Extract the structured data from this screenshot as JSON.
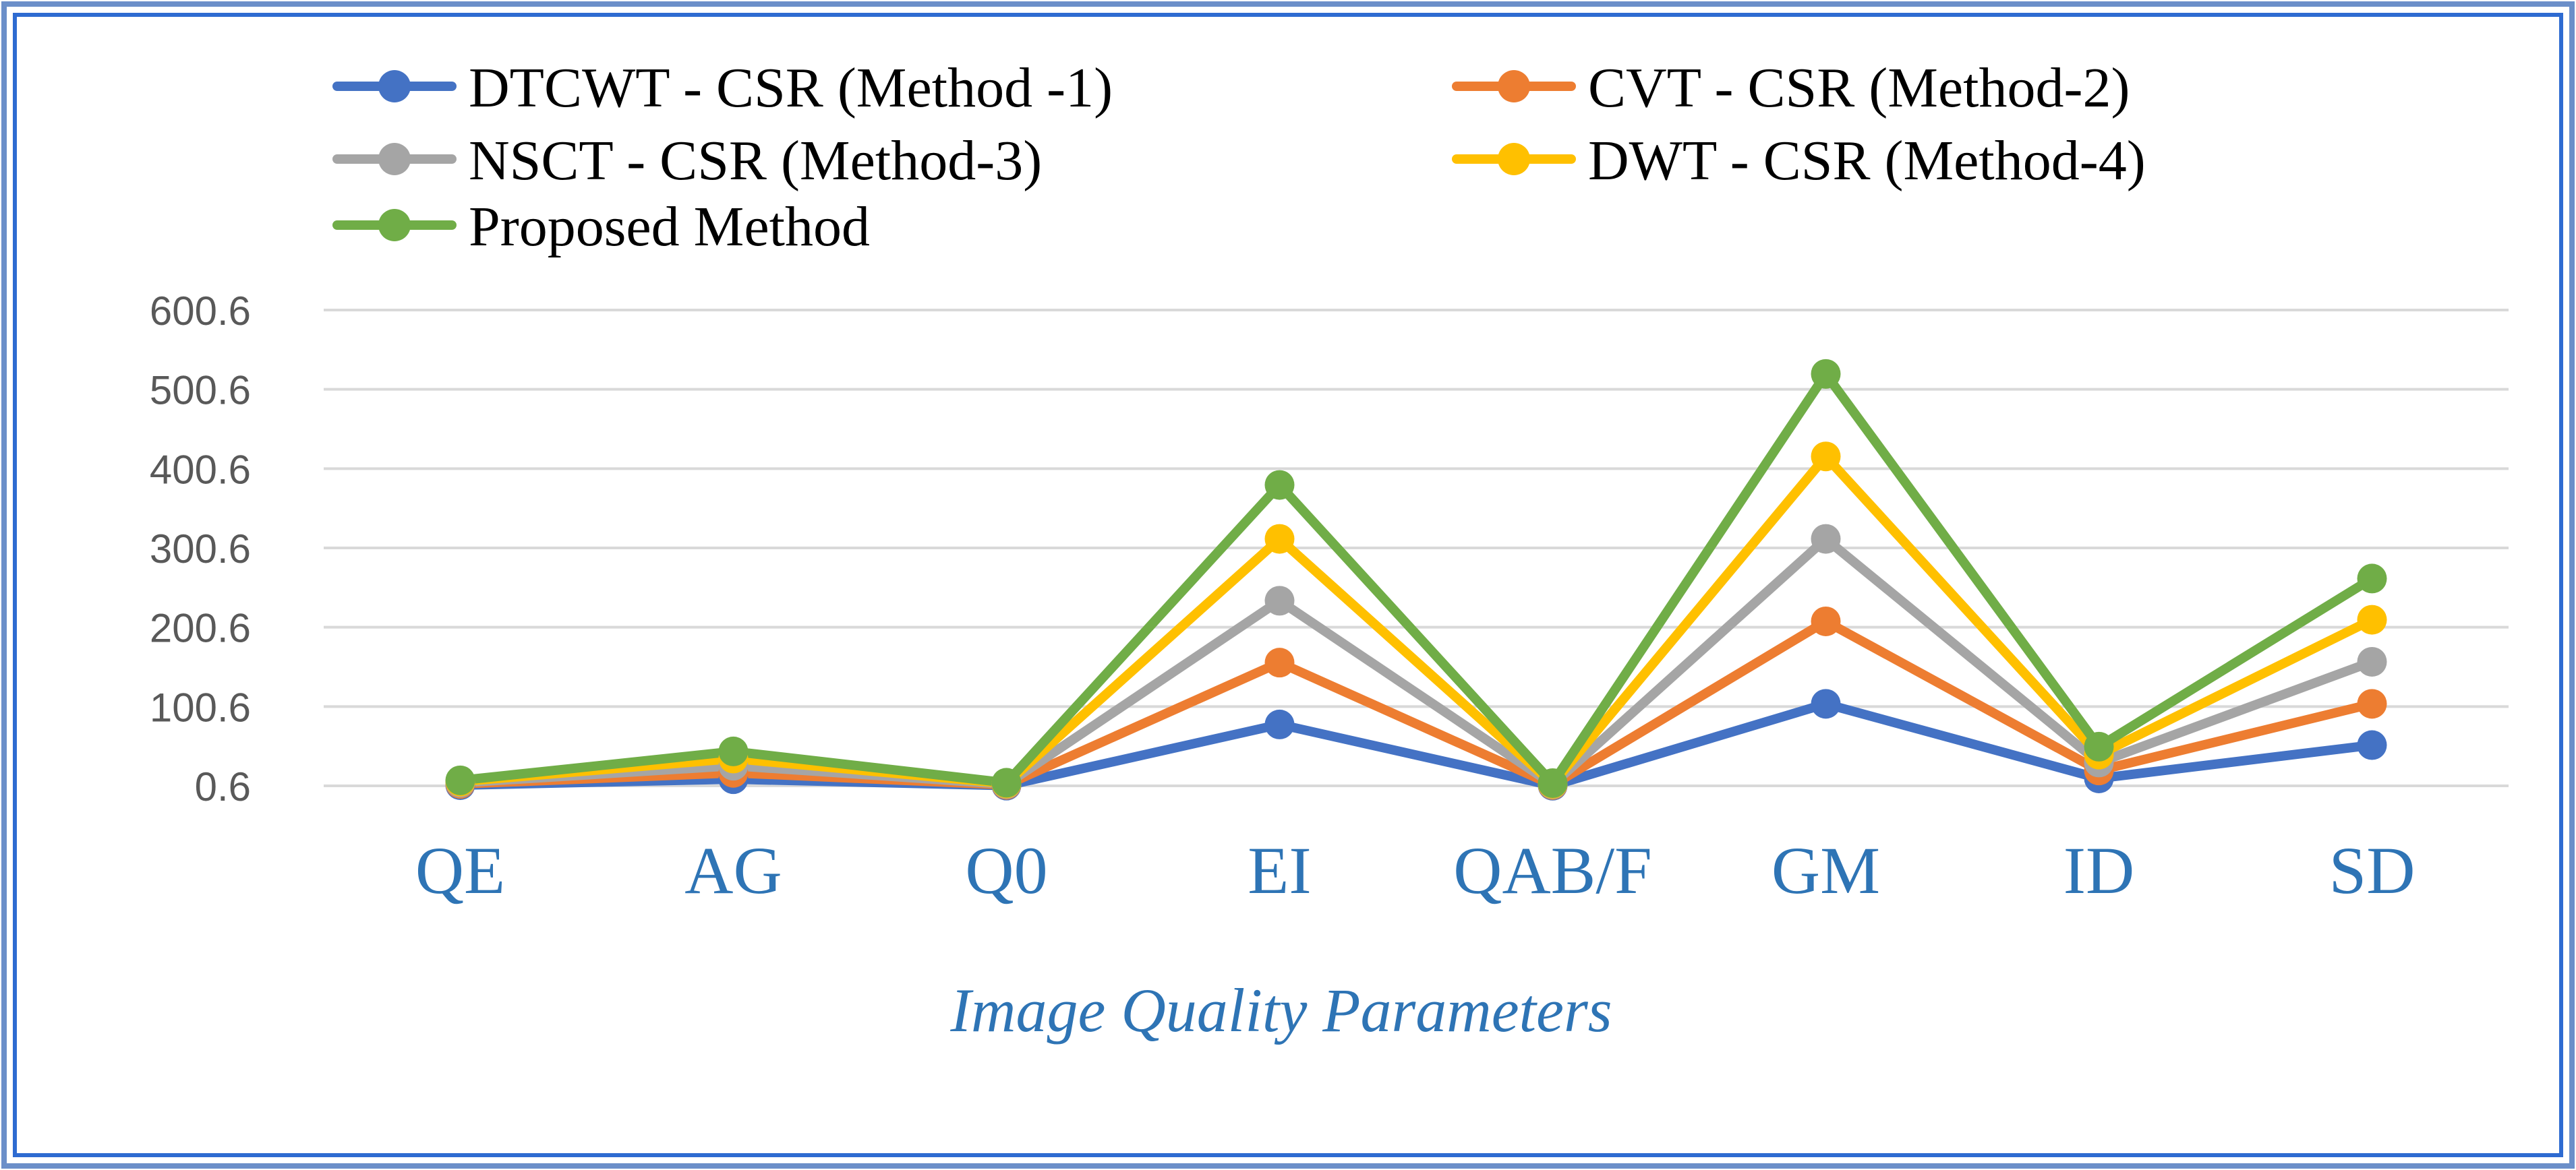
{
  "colors": {
    "frame_outer": "#6b8fc9",
    "frame_inner": "#2e6bd1",
    "grid": "#d9d9d9",
    "tick_label": "#595959",
    "category_label": "#2e74b5",
    "legend_text": "#000000"
  },
  "chart_data": {
    "type": "line",
    "title": "",
    "xlabel": "Image Quality Parameters",
    "ylabel": "",
    "categories": [
      "QE",
      "AG",
      "Q0",
      "EI",
      "QAB/F",
      "GM",
      "ID",
      "SD"
    ],
    "y_ticks": [
      "0.6",
      "100.6",
      "200.6",
      "300.6",
      "400.6",
      "500.6",
      "600.6"
    ],
    "ylim": [
      0.6,
      600.6
    ],
    "grid": true,
    "legend_position": "top-left",
    "series": [
      {
        "name": "DTCWT - CSR (Method -1)",
        "color": "#4472c4",
        "values": [
          1.5,
          9,
          0.9,
          78,
          0.8,
          104,
          10,
          52
        ]
      },
      {
        "name": "CVT - CSR (Method-2)",
        "color": "#ed7d31",
        "values": [
          3,
          17,
          1.8,
          156,
          1.6,
          208,
          20,
          104
        ]
      },
      {
        "name": "NSCT - CSR (Method-3)",
        "color": "#a5a5a5",
        "values": [
          4.5,
          26,
          2.7,
          234,
          2.4,
          312,
          30,
          157
        ]
      },
      {
        "name": "DWT - CSR (Method-4)",
        "color": "#ffc000",
        "values": [
          6,
          35,
          3.6,
          312,
          3.2,
          416,
          40,
          210
        ]
      },
      {
        "name": "Proposed Method",
        "color": "#70ad47",
        "values": [
          7.5,
          44,
          4.5,
          380,
          4,
          520,
          50,
          262
        ]
      }
    ]
  }
}
